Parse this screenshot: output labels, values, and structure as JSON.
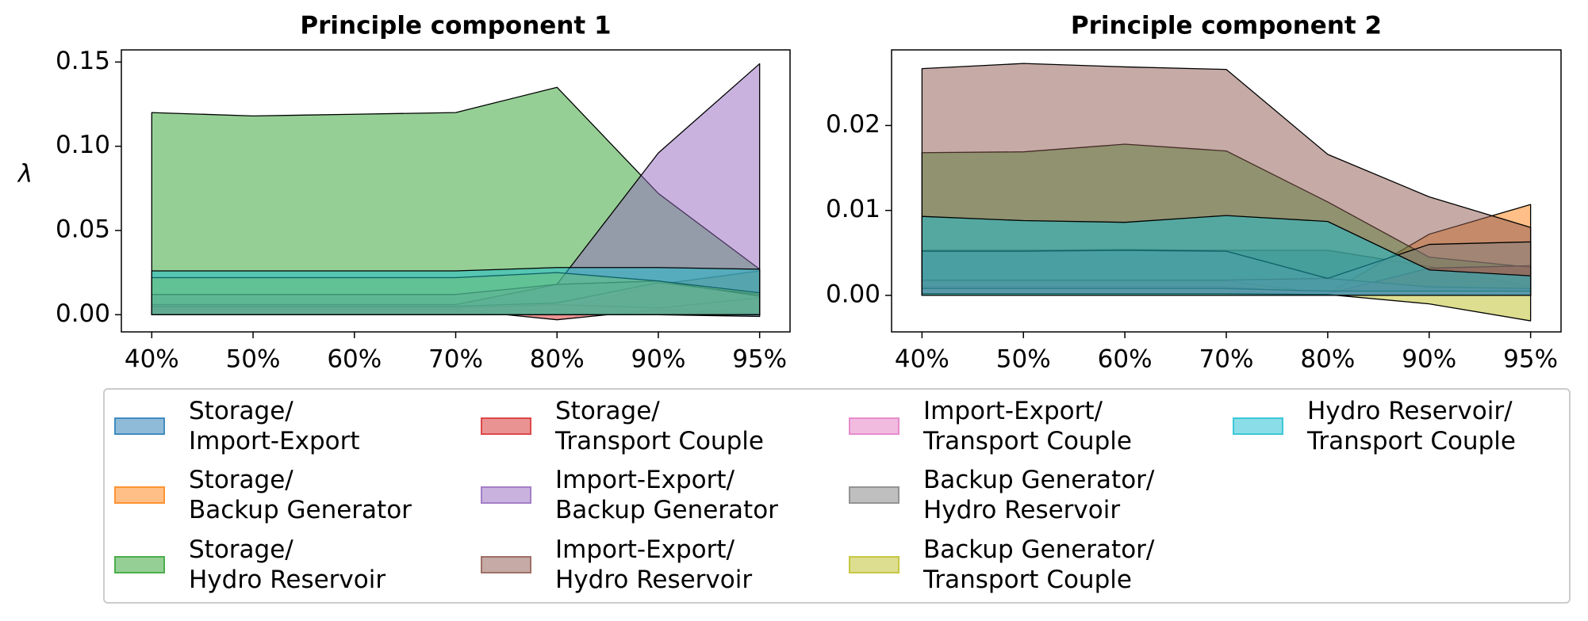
{
  "chart_data": [
    {
      "type": "area",
      "title": "Principle component 1",
      "ylabel": "λ",
      "categories": [
        "40%",
        "50%",
        "60%",
        "70%",
        "80%",
        "90%",
        "95%"
      ],
      "ylim": [
        -0.0102,
        0.1572
      ],
      "yticks": [
        {
          "value": 0,
          "label": "0.00"
        },
        0.05,
        {
          "value": 0.1,
          "label": "0.10"
        },
        0.15
      ],
      "series": [
        {
          "name": "Storage/\nImport-Export",
          "color": "#1f77b4",
          "values": [
            0.001,
            0.001,
            0.001,
            0.001,
            0.001,
            0.0,
            -0.001
          ]
        },
        {
          "name": "Storage/\nBackup Generator",
          "color": "#ff7f0e",
          "values": [
            0.002,
            0.002,
            0.002,
            0.002,
            0.003,
            0.018,
            0.026
          ]
        },
        {
          "name": "Storage/\nHydro Reservoir",
          "color": "#2ca02c",
          "values": [
            0.12,
            0.118,
            0.119,
            0.12,
            0.135,
            0.072,
            0.027
          ]
        },
        {
          "name": "Storage/\nTransport Couple",
          "color": "#d62728",
          "values": [
            0.003,
            0.003,
            0.003,
            0.003,
            -0.003,
            0.003,
            0.001
          ]
        },
        {
          "name": "Import-Export/\nBackup Generator",
          "color": "#9467bd",
          "values": [
            0.006,
            0.006,
            0.006,
            0.006,
            0.018,
            0.096,
            0.149
          ]
        },
        {
          "name": "Import-Export/\nHydro Reservoir",
          "color": "#8c564b",
          "values": [
            0.004,
            0.004,
            0.004,
            0.004,
            0.006,
            0.004,
            0.01
          ]
        },
        {
          "name": "Import-Export/\nTransport Couple",
          "color": "#e377c2",
          "values": [
            0.005,
            0.005,
            0.005,
            0.005,
            0.007,
            0.019,
            0.012
          ]
        },
        {
          "name": "Backup Generator/\nHydro Reservoir",
          "color": "#7f7f7f",
          "values": [
            0.012,
            0.012,
            0.012,
            0.012,
            0.018,
            0.02,
            0.011
          ]
        },
        {
          "name": "Backup Generator/\nTransport Couple",
          "color": "#bcbd22",
          "values": [
            0.022,
            0.022,
            0.022,
            0.022,
            0.025,
            0.02,
            0.013
          ]
        },
        {
          "name": "Hydro Reservoir/\nTransport Couple",
          "color": "#17becf",
          "values": [
            0.026,
            0.026,
            0.026,
            0.026,
            0.028,
            0.028,
            0.027
          ]
        }
      ]
    },
    {
      "type": "area",
      "title": "Principle component 2",
      "categories": [
        "40%",
        "50%",
        "60%",
        "70%",
        "80%",
        "90%",
        "95%"
      ],
      "ylim": [
        -0.0043,
        0.0289
      ],
      "yticks": [
        {
          "value": 0,
          "label": "0.00"
        },
        {
          "value": 0.01,
          "label": "0.01"
        },
        {
          "value": 0.02,
          "label": "0.02"
        }
      ],
      "series": [
        {
          "name": "Storage/\nImport-Export",
          "color": "#1f77b4",
          "values": [
            0.0053,
            0.0053,
            0.0054,
            0.0053,
            0.0053,
            0.0034,
            0.001
          ]
        },
        {
          "name": "Storage/\nBackup Generator",
          "color": "#ff7f0e",
          "values": [
            0.0017,
            0.0017,
            0.0017,
            0.0017,
            0.0002,
            0.0072,
            0.0107
          ]
        },
        {
          "name": "Storage/\nHydro Reservoir",
          "color": "#2ca02c",
          "values": [
            0.0168,
            0.0169,
            0.0178,
            0.017,
            0.011,
            0.0045,
            0.0033
          ]
        },
        {
          "name": "Storage/\nTransport Couple",
          "color": "#d62728",
          "values": [
            0.001,
            0.001,
            0.001,
            0.001,
            0.0002,
            0.0032,
            0.0035
          ]
        },
        {
          "name": "Import-Export/\nBackup Generator",
          "color": "#9467bd",
          "values": [
            0.0018,
            0.0018,
            0.0018,
            0.0018,
            0.002,
            0.001,
            0.0008
          ]
        },
        {
          "name": "Import-Export/\nHydro Reservoir",
          "color": "#8c564b",
          "values": [
            0.0267,
            0.0273,
            0.0269,
            0.0266,
            0.0166,
            0.0116,
            0.008
          ]
        },
        {
          "name": "Import-Export/\nTransport Couple",
          "color": "#e377c2",
          "values": [
            0.0008,
            0.0008,
            0.0008,
            0.0008,
            0.0005,
            0.0005,
            0.0005
          ]
        },
        {
          "name": "Backup Generator/\nHydro Reservoir",
          "color": "#7f7f7f",
          "values": [
            0.0052,
            0.0052,
            0.0053,
            0.0052,
            0.002,
            0.006,
            0.0063
          ]
        },
        {
          "name": "Backup Generator/\nTransport Couple",
          "color": "#bcbd22",
          "values": [
            0.0002,
            0.0002,
            0.0002,
            0.0002,
            0.0001,
            -0.001,
            -0.003
          ]
        },
        {
          "name": "Hydro Reservoir/\nTransport Couple",
          "color": "#17becf",
          "values": [
            0.0093,
            0.0088,
            0.0086,
            0.0094,
            0.0087,
            0.003,
            0.0023
          ]
        }
      ]
    }
  ]
}
